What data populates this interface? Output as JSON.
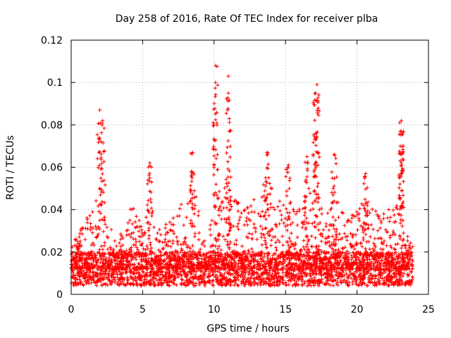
{
  "chart_data": {
    "type": "scatter",
    "title": "Day 258 of 2016, Rate Of TEC Index for receiver plba",
    "xlabel": "GPS time / hours",
    "ylabel": "ROTI / TECUs",
    "xlim": [
      0,
      25
    ],
    "ylim": [
      0,
      0.12
    ],
    "x_ticks": [
      0,
      5,
      10,
      15,
      20,
      25
    ],
    "x_tick_labels": [
      "0",
      "5",
      "10",
      "15",
      "20",
      "25"
    ],
    "y_ticks": [
      0,
      0.02,
      0.04,
      0.06,
      0.08,
      0.1,
      0.12
    ],
    "y_tick_labels": [
      "0",
      "0.02",
      "0.04",
      "0.06",
      "0.08",
      "0.1",
      "0.12"
    ],
    "grid": true,
    "marker": "plus",
    "series_color": "#ff0000",
    "time_range_hours": [
      0,
      23.9
    ],
    "baseline_range": [
      0.004,
      0.02
    ],
    "notable_peaks": [
      {
        "x": 2.0,
        "y": 0.087
      },
      {
        "x": 2.2,
        "y": 0.082
      },
      {
        "x": 5.5,
        "y": 0.062
      },
      {
        "x": 8.5,
        "y": 0.067
      },
      {
        "x": 10.1,
        "y": 0.108
      },
      {
        "x": 10.1,
        "y": 0.1
      },
      {
        "x": 11.0,
        "y": 0.103
      },
      {
        "x": 11.0,
        "y": 0.095
      },
      {
        "x": 13.7,
        "y": 0.067
      },
      {
        "x": 15.2,
        "y": 0.061
      },
      {
        "x": 16.5,
        "y": 0.065
      },
      {
        "x": 17.2,
        "y": 0.099
      },
      {
        "x": 17.1,
        "y": 0.095
      },
      {
        "x": 17.1,
        "y": 0.076
      },
      {
        "x": 18.4,
        "y": 0.066
      },
      {
        "x": 20.6,
        "y": 0.057
      },
      {
        "x": 23.1,
        "y": 0.082
      },
      {
        "x": 23.1,
        "y": 0.077
      },
      {
        "x": 23.1,
        "y": 0.066
      }
    ]
  }
}
